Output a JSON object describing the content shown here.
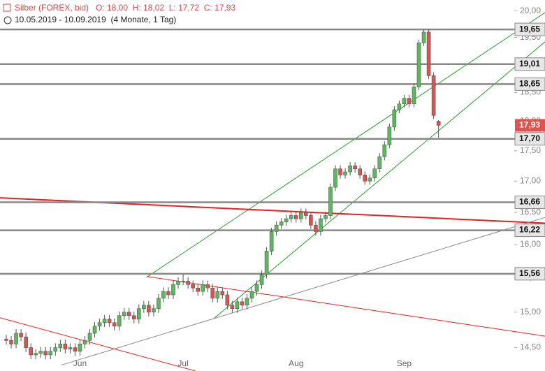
{
  "chart_data": {
    "type": "candlestick",
    "title": "Silber (FOREX, bid)",
    "ohlc_text": "O: 18,00  H: 18,02  L: 17,72  C: 17,93",
    "subtitle": "10.05.2019 - 10.09.2019  (4 Monate, 1 Tag)",
    "log_scale": true,
    "ylim": [
      14.18,
      20.21
    ],
    "yticks": [
      {
        "value": 14.5,
        "label": "14,50"
      },
      {
        "value": 15,
        "label": "15,00"
      },
      {
        "value": 15.5,
        "label": "15,50"
      },
      {
        "value": 16,
        "label": "16,00"
      },
      {
        "value": 16.5,
        "label": "16,50"
      },
      {
        "value": 17,
        "label": "17,00"
      },
      {
        "value": 17.5,
        "label": "17,50"
      },
      {
        "value": 18,
        "label": "18,00"
      },
      {
        "value": 18.5,
        "label": "18,50"
      },
      {
        "value": 19,
        "label": "19,00"
      },
      {
        "value": 19.5,
        "label": "19,50"
      },
      {
        "value": 20,
        "label": "20,00"
      }
    ],
    "categories": [
      null,
      null,
      null,
      null,
      null,
      null,
      null,
      null,
      null,
      null,
      null,
      null,
      null,
      null,
      null,
      "Jun",
      null,
      null,
      null,
      null,
      null,
      null,
      null,
      null,
      null,
      null,
      null,
      null,
      null,
      null,
      null,
      null,
      null,
      null,
      null,
      null,
      "Jul",
      null,
      null,
      null,
      null,
      null,
      null,
      null,
      null,
      null,
      null,
      null,
      null,
      null,
      null,
      null,
      null,
      null,
      null,
      null,
      null,
      null,
      null,
      "Aug",
      null,
      null,
      null,
      null,
      null,
      null,
      null,
      null,
      null,
      null,
      null,
      null,
      null,
      null,
      null,
      null,
      null,
      null,
      null,
      null,
      null,
      "Sep",
      null,
      null,
      null,
      null,
      null,
      null,
      null
    ],
    "up_color": "#5cb85c",
    "down_color": "#d9534f",
    "open": [
      14.62,
      14.6,
      14.55,
      14.7,
      14.65,
      14.5,
      14.4,
      14.42,
      14.45,
      14.4,
      14.45,
      14.5,
      14.55,
      14.48,
      14.5,
      14.45,
      14.55,
      14.6,
      14.7,
      14.8,
      14.85,
      14.9,
      14.85,
      14.8,
      14.95,
      15.0,
      14.95,
      14.9,
      15.05,
      15.1,
      15.0,
      15.05,
      15.2,
      15.3,
      15.25,
      15.4,
      15.45,
      15.45,
      15.4,
      15.35,
      15.3,
      15.4,
      15.35,
      15.2,
      15.3,
      15.25,
      15.1,
      15.05,
      15.15,
      15.1,
      15.2,
      15.3,
      15.4,
      15.55,
      15.9,
      16.2,
      16.3,
      16.35,
      16.4,
      16.45,
      16.4,
      16.5,
      16.45,
      16.3,
      16.2,
      16.4,
      16.45,
      16.9,
      17.2,
      17.1,
      17.15,
      17.25,
      17.2,
      17.1,
      17.0,
      17.05,
      17.2,
      17.4,
      17.6,
      17.9,
      18.2,
      18.3,
      18.4,
      18.3,
      18.6,
      19.4,
      19.6,
      18.8,
      18.0
    ],
    "high": [
      14.68,
      14.66,
      14.76,
      14.76,
      14.71,
      14.56,
      14.48,
      14.51,
      14.51,
      14.51,
      14.56,
      14.61,
      14.61,
      14.56,
      14.56,
      14.61,
      14.66,
      14.76,
      14.86,
      14.91,
      14.96,
      14.96,
      14.91,
      15.01,
      15.06,
      15.06,
      15.01,
      15.11,
      15.16,
      15.16,
      15.11,
      15.26,
      15.36,
      15.36,
      15.46,
      15.51,
      15.55,
      15.51,
      15.46,
      15.41,
      15.46,
      15.46,
      15.41,
      15.36,
      15.36,
      15.31,
      15.16,
      15.21,
      15.21,
      15.26,
      15.36,
      15.46,
      15.61,
      15.96,
      16.26,
      16.36,
      16.41,
      16.46,
      16.51,
      16.51,
      16.56,
      16.56,
      16.51,
      16.36,
      16.46,
      16.51,
      16.96,
      17.26,
      17.26,
      17.21,
      17.31,
      17.31,
      17.26,
      17.16,
      17.11,
      17.26,
      17.46,
      17.66,
      17.96,
      18.26,
      18.36,
      18.46,
      18.46,
      18.66,
      19.46,
      19.65,
      19.65,
      18.86,
      18.02
    ],
    "low": [
      14.54,
      14.49,
      14.49,
      14.59,
      14.44,
      14.34,
      14.34,
      14.36,
      14.34,
      14.34,
      14.39,
      14.44,
      14.42,
      14.42,
      14.39,
      14.39,
      14.49,
      14.54,
      14.64,
      14.74,
      14.79,
      14.79,
      14.74,
      14.74,
      14.89,
      14.89,
      14.84,
      14.84,
      14.99,
      14.94,
      14.94,
      14.99,
      15.14,
      15.19,
      15.19,
      15.34,
      15.39,
      15.34,
      15.29,
      15.24,
      15.24,
      15.29,
      15.14,
      15.14,
      15.19,
      15.04,
      14.99,
      14.99,
      15.04,
      15.04,
      15.14,
      15.24,
      15.34,
      15.49,
      15.84,
      16.14,
      16.24,
      16.29,
      16.34,
      16.34,
      16.34,
      16.39,
      16.24,
      16.14,
      16.14,
      16.34,
      16.39,
      16.84,
      17.04,
      17.04,
      17.09,
      17.14,
      17.04,
      16.94,
      16.94,
      16.99,
      17.14,
      17.34,
      17.54,
      17.84,
      18.14,
      18.24,
      18.24,
      18.24,
      18.54,
      19.34,
      18.74,
      18.04,
      17.72
    ],
    "close": [
      14.6,
      14.55,
      14.7,
      14.65,
      14.5,
      14.4,
      14.42,
      14.45,
      14.4,
      14.45,
      14.5,
      14.55,
      14.48,
      14.5,
      14.45,
      14.55,
      14.6,
      14.7,
      14.8,
      14.85,
      14.9,
      14.85,
      14.8,
      14.95,
      15.0,
      14.95,
      14.9,
      15.05,
      15.1,
      15.0,
      15.05,
      15.2,
      15.3,
      15.25,
      15.4,
      15.45,
      15.45,
      15.4,
      15.35,
      15.3,
      15.4,
      15.35,
      15.2,
      15.3,
      15.25,
      15.1,
      15.05,
      15.15,
      15.1,
      15.2,
      15.3,
      15.4,
      15.55,
      15.9,
      16.2,
      16.3,
      16.35,
      16.4,
      16.45,
      16.4,
      16.5,
      16.45,
      16.3,
      16.2,
      16.4,
      16.45,
      16.9,
      17.2,
      17.1,
      17.15,
      17.25,
      17.2,
      17.1,
      17.0,
      17.05,
      17.2,
      17.4,
      17.6,
      17.9,
      18.2,
      18.3,
      18.4,
      18.3,
      18.6,
      19.4,
      19.6,
      18.8,
      18.1,
      17.93
    ],
    "levels": [
      {
        "value": 19.65,
        "label": "19,65"
      },
      {
        "value": 19.01,
        "label": "19,01"
      },
      {
        "value": 18.65,
        "label": "18,65"
      },
      {
        "value": 17.7,
        "label": "17,70"
      },
      {
        "value": 16.66,
        "label": "16,66"
      },
      {
        "value": 16.22,
        "label": "16,22"
      },
      {
        "value": 15.56,
        "label": "15,56"
      }
    ],
    "level_color": "#888888",
    "current": {
      "value": 17.93,
      "label": "17,93"
    },
    "current_color": "#e0524e",
    "trendlines": [
      {
        "color": "#2e9a2e",
        "width": 1,
        "points": [
          [
            28.6,
            15.51
          ],
          [
            109.7,
            19.97
          ]
        ]
      },
      {
        "color": "#2e9a2e",
        "width": 1,
        "points": [
          [
            42.1,
            14.9
          ],
          [
            109.7,
            19.42
          ]
        ]
      },
      {
        "color": "#e32222",
        "width": 2,
        "points": [
          [
            -1.28,
            16.73
          ],
          [
            109.7,
            16.33
          ]
        ]
      },
      {
        "color": "#e32222",
        "width": 1,
        "points": [
          [
            28.6,
            15.52
          ],
          [
            109.7,
            14.66
          ]
        ]
      },
      {
        "color": "#e32222",
        "width": 1,
        "points": [
          [
            -1.28,
            14.92
          ],
          [
            38.5,
            14.18
          ]
        ]
      },
      {
        "color": "#888888",
        "width": 1,
        "points": [
          [
            11.2,
            14.26
          ],
          [
            109.7,
            16.42
          ]
        ]
      }
    ]
  }
}
